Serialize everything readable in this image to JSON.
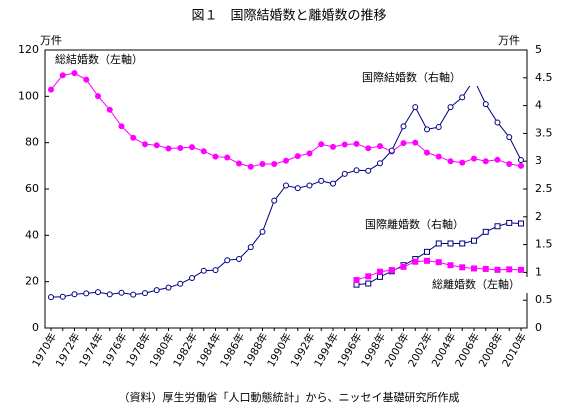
{
  "chart_data": {
    "type": "line",
    "title": "図１　国際結婚数と離婚数の推移",
    "y_unit": "万件",
    "y2_unit": "万件",
    "source": "（資料）厚生労働省「人口動態統計」から、ニッセイ基礎研究所作成",
    "categories": [
      "1970年",
      null,
      "1972年",
      null,
      "1974年",
      null,
      "1976年",
      null,
      "1978年",
      null,
      "1980年",
      null,
      "1982年",
      null,
      "1984年",
      null,
      "1986年",
      null,
      "1988年",
      null,
      "1990年",
      null,
      "1992年",
      null,
      "1994年",
      null,
      "1996年",
      null,
      "1998年",
      null,
      "2000年",
      null,
      "2002年",
      null,
      "2004年",
      null,
      "2006年",
      null,
      "2008年",
      null,
      "2010年"
    ],
    "ylim": [
      0,
      120
    ],
    "yticks": [
      0,
      20,
      40,
      60,
      80,
      100,
      120
    ],
    "y2lim": [
      0,
      5
    ],
    "y2ticks": [
      0,
      0.5,
      1,
      1.5,
      2,
      2.5,
      3,
      3.5,
      4,
      4.5,
      5
    ],
    "series": [
      {
        "name": "総結婚数（左軸）",
        "color": "#ff00ff",
        "marker": "circle",
        "filled": true,
        "values": [
          102.9,
          109.1,
          110.0,
          107.2,
          100.1,
          94.2,
          87.1,
          82.1,
          79.3,
          78.9,
          77.5,
          77.7,
          78.1,
          76.3,
          74.0,
          73.6,
          71.0,
          69.6,
          70.8,
          70.8,
          72.2,
          74.2,
          75.4,
          79.3,
          78.2,
          79.2,
          79.5,
          77.6,
          78.5,
          76.2,
          79.8,
          80.0,
          75.7,
          74.0,
          72.0,
          71.4,
          73.1,
          72.0,
          72.6,
          70.8,
          70.0
        ]
      },
      {
        "name": "国際結婚数（右軸）",
        "color": "#000080",
        "marker": "circle",
        "filled": false,
        "axis": "y2",
        "values": [
          0.555,
          0.563,
          0.606,
          0.623,
          0.646,
          0.605,
          0.634,
          0.6,
          0.628,
          0.682,
          0.726,
          0.795,
          0.9,
          1.03,
          1.04,
          1.218,
          1.242,
          1.455,
          1.73,
          2.29,
          2.563,
          2.516,
          2.564,
          2.646,
          2.596,
          2.773,
          2.837,
          2.829,
          2.964,
          3.19,
          3.626,
          3.973,
          3.572,
          3.614,
          3.973,
          4.148,
          4.47,
          4.027,
          3.697,
          3.434,
          3.021
        ]
      },
      {
        "name": "国際離婚数（右軸）",
        "color": "#000080",
        "marker": "square",
        "filled": false,
        "axis": "y2",
        "values": [
          null,
          null,
          null,
          null,
          null,
          null,
          null,
          null,
          null,
          null,
          null,
          null,
          null,
          null,
          null,
          null,
          null,
          null,
          null,
          null,
          null,
          null,
          null,
          null,
          null,
          null,
          0.78,
          0.8,
          0.92,
          1.02,
          1.13,
          1.24,
          1.37,
          1.52,
          1.52,
          1.52,
          1.57,
          1.73,
          1.83,
          1.89,
          1.88
        ]
      },
      {
        "name": "総離婚数（左軸）",
        "color": "#ff00ff",
        "marker": "square",
        "filled": true,
        "values": [
          null,
          null,
          null,
          null,
          null,
          null,
          null,
          null,
          null,
          null,
          null,
          null,
          null,
          null,
          null,
          null,
          null,
          null,
          null,
          null,
          null,
          null,
          null,
          null,
          null,
          null,
          20.7,
          22.3,
          24.3,
          25.0,
          26.4,
          28.6,
          29.0,
          28.4,
          27.1,
          26.2,
          25.7,
          25.5,
          25.1,
          25.3,
          25.1
        ]
      }
    ]
  }
}
